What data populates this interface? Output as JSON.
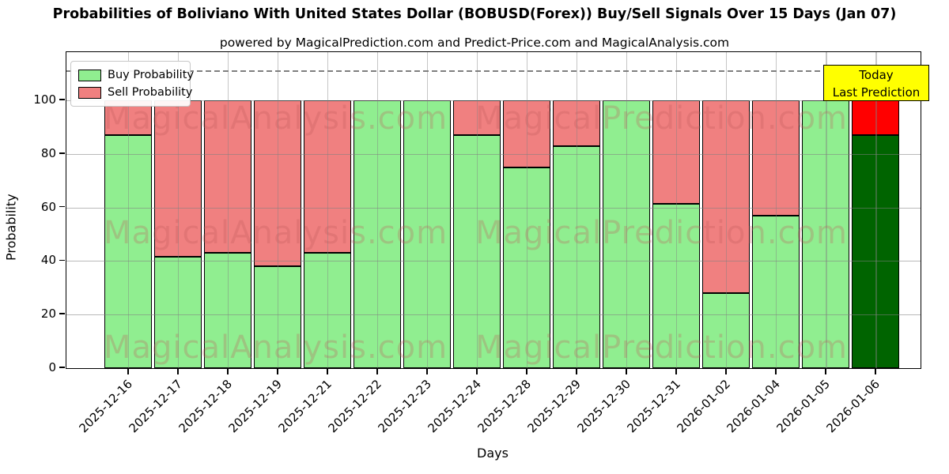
{
  "page": {
    "title": "Probabilities of Boliviano With United States Dollar (BOBUSD(Forex)) Buy/Sell Signals Over 15 Days (Jan 07)",
    "subtitle": "powered by MagicalPrediction.com and Predict-Price.com and MagicalAnalysis.com"
  },
  "chart_data": {
    "type": "bar",
    "stacked": true,
    "title": "Probabilities of Boliviano With United States Dollar (BOBUSD(Forex)) Buy/Sell Signals Over 15 Days (Jan 07)",
    "xlabel": "Days",
    "ylabel": "Probability",
    "ylim": [
      0,
      118
    ],
    "yticks": [
      0,
      20,
      40,
      60,
      80,
      100
    ],
    "grid": true,
    "dashed_threshold_y": 111,
    "categories": [
      "2025-12-16",
      "2025-12-17",
      "2025-12-18",
      "2025-12-19",
      "2025-12-21",
      "2025-12-22",
      "2025-12-23",
      "2025-12-24",
      "2025-12-28",
      "2025-12-29",
      "2025-12-30",
      "2025-12-31",
      "2026-01-02",
      "2026-01-04",
      "2026-01-05",
      "2026-01-06"
    ],
    "series": [
      {
        "name": "Buy Probability",
        "color": "#90ee90",
        "values": [
          87,
          41.5,
          43,
          38,
          43,
          100,
          100,
          87,
          75,
          83,
          100,
          61.5,
          28,
          57,
          100,
          87
        ]
      },
      {
        "name": "Sell Probability",
        "color": "#f08080",
        "values": [
          13,
          58.5,
          57,
          62,
          57,
          0,
          0,
          13,
          25,
          17,
          0,
          38.5,
          72,
          43,
          0,
          13
        ]
      }
    ],
    "last_bar": {
      "category": "2026-01-06",
      "buy_color": "#006400",
      "sell_color": "#ff0000"
    },
    "legend": {
      "position": "upper-left"
    },
    "annotation": {
      "line1": "Today",
      "line2": "Last Prediction",
      "bg_color": "#ffff00"
    }
  },
  "watermarks": {
    "left_text": "MagicalAnalysis.com",
    "right_text": "MagicalPrediction.com"
  }
}
